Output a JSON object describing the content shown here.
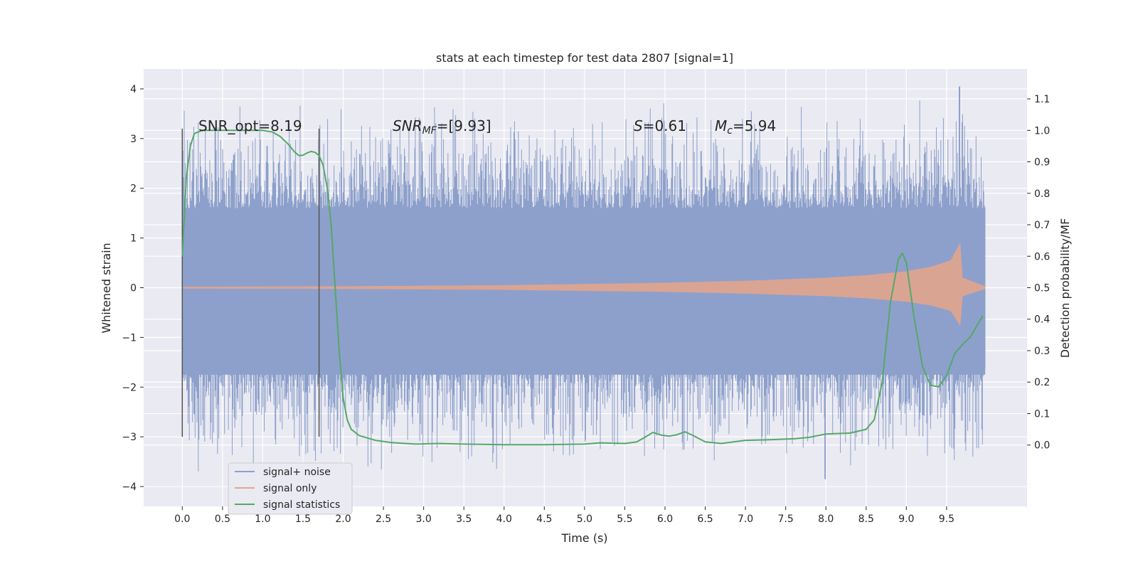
{
  "chart_data": {
    "type": "line",
    "title": "stats at each timestep for test data 2807 [signal=1]",
    "xlabel": "Time (s)",
    "ylabel_left": "Whitened strain",
    "ylabel_right": "Detection probability/MF",
    "xlim": [
      -0.48,
      10.5
    ],
    "ylim_left": [
      -4.4,
      4.4
    ],
    "ylim_right": [
      -0.195,
      1.195
    ],
    "xticks": [
      "0.0",
      "0.5",
      "1.0",
      "1.5",
      "2.0",
      "2.5",
      "3.0",
      "3.5",
      "4.0",
      "4.5",
      "5.0",
      "5.5",
      "6.0",
      "6.5",
      "7.0",
      "7.5",
      "8.0",
      "8.5",
      "9.0",
      "9.5"
    ],
    "yticks_left": [
      "4",
      "3",
      "2",
      "1",
      "0",
      "−1",
      "−2",
      "−3",
      "−4"
    ],
    "yticks_right": [
      "1.1",
      "1.0",
      "0.9",
      "0.8",
      "0.7",
      "0.6",
      "0.5",
      "0.4",
      "0.3",
      "0.2",
      "0.1",
      "0.0"
    ],
    "grid": true,
    "legend_position": "bottom-left",
    "annotations": {
      "snr_opt": "SNR_opt=8.19",
      "snr_mf_main": "SNR",
      "snr_mf_sub": "MF",
      "snr_mf_rest": "=[9.93]",
      "s_main": "S",
      "s_rest": "=0.61",
      "mc_main": "M",
      "mc_sub": "c",
      "mc_rest": "=5.94"
    },
    "markers": [
      0.0,
      1.7
    ],
    "series": [
      {
        "name": "signal+ noise",
        "color": "#8da0cb",
        "axis": "left",
        "x_range": [
          0.0,
          9.98
        ],
        "core_amplitude": 1.3,
        "peak_amplitude_typical": 2.8,
        "max_value": 4.05,
        "max_at": 9.66,
        "min_value": -3.85,
        "min_at": 7.99
      },
      {
        "name": "signal only",
        "color": "#e8a48a",
        "axis": "left",
        "envelope": [
          [
            0.0,
            0.02
          ],
          [
            2.0,
            0.03
          ],
          [
            4.0,
            0.05
          ],
          [
            6.0,
            0.1
          ],
          [
            7.0,
            0.14
          ],
          [
            8.0,
            0.2
          ],
          [
            8.5,
            0.25
          ],
          [
            9.0,
            0.33
          ],
          [
            9.3,
            0.42
          ],
          [
            9.55,
            0.55
          ],
          [
            9.67,
            0.9
          ],
          [
            9.7,
            0.2
          ],
          [
            9.98,
            0.03
          ]
        ]
      },
      {
        "name": "signal statistics",
        "color": "#55a868",
        "axis": "right",
        "points": [
          [
            0.0,
            0.6
          ],
          [
            0.05,
            0.85
          ],
          [
            0.1,
            0.95
          ],
          [
            0.15,
            0.99
          ],
          [
            0.25,
            1.0
          ],
          [
            0.5,
            1.0
          ],
          [
            0.8,
            1.0
          ],
          [
            1.0,
            1.0
          ],
          [
            1.12,
            0.995
          ],
          [
            1.22,
            0.98
          ],
          [
            1.32,
            0.955
          ],
          [
            1.4,
            0.93
          ],
          [
            1.45,
            0.92
          ],
          [
            1.5,
            0.921
          ],
          [
            1.55,
            0.928
          ],
          [
            1.6,
            0.933
          ],
          [
            1.65,
            0.93
          ],
          [
            1.7,
            0.92
          ],
          [
            1.75,
            0.89
          ],
          [
            1.8,
            0.82
          ],
          [
            1.85,
            0.7
          ],
          [
            1.9,
            0.5
          ],
          [
            1.95,
            0.3
          ],
          [
            2.0,
            0.15
          ],
          [
            2.05,
            0.08
          ],
          [
            2.1,
            0.05
          ],
          [
            2.2,
            0.03
          ],
          [
            2.4,
            0.015
          ],
          [
            2.6,
            0.008
          ],
          [
            2.9,
            0.003
          ],
          [
            3.2,
            0.005
          ],
          [
            3.5,
            0.003
          ],
          [
            4.0,
            0.001
          ],
          [
            4.5,
            0.001
          ],
          [
            5.0,
            0.003
          ],
          [
            5.2,
            0.007
          ],
          [
            5.5,
            0.005
          ],
          [
            5.65,
            0.01
          ],
          [
            5.75,
            0.025
          ],
          [
            5.85,
            0.04
          ],
          [
            5.95,
            0.032
          ],
          [
            6.05,
            0.028
          ],
          [
            6.15,
            0.033
          ],
          [
            6.25,
            0.042
          ],
          [
            6.35,
            0.03
          ],
          [
            6.5,
            0.01
          ],
          [
            6.7,
            0.005
          ],
          [
            7.0,
            0.015
          ],
          [
            7.3,
            0.017
          ],
          [
            7.6,
            0.02
          ],
          [
            7.8,
            0.025
          ],
          [
            8.0,
            0.035
          ],
          [
            8.3,
            0.038
          ],
          [
            8.5,
            0.05
          ],
          [
            8.6,
            0.08
          ],
          [
            8.7,
            0.2
          ],
          [
            8.8,
            0.45
          ],
          [
            8.9,
            0.59
          ],
          [
            8.95,
            0.61
          ],
          [
            9.0,
            0.58
          ],
          [
            9.1,
            0.4
          ],
          [
            9.2,
            0.25
          ],
          [
            9.3,
            0.19
          ],
          [
            9.4,
            0.185
          ],
          [
            9.5,
            0.22
          ],
          [
            9.6,
            0.29
          ],
          [
            9.7,
            0.32
          ],
          [
            9.8,
            0.345
          ],
          [
            9.9,
            0.39
          ],
          [
            9.95,
            0.41
          ]
        ]
      }
    ]
  },
  "legend": {
    "items": [
      "signal+ noise",
      "signal only",
      "signal statistics"
    ]
  }
}
